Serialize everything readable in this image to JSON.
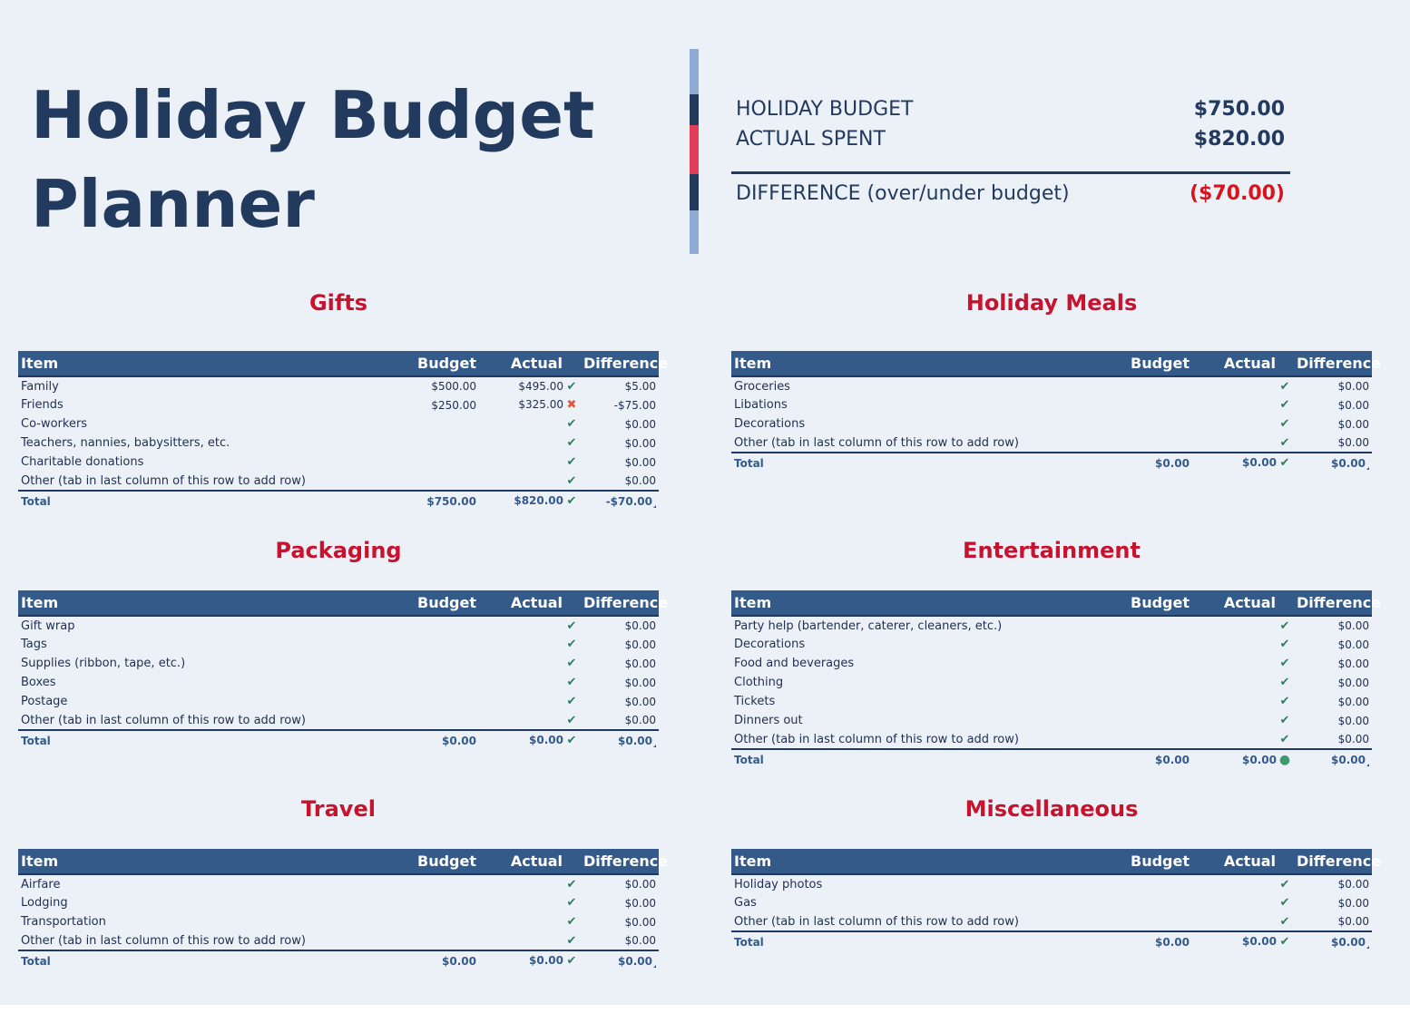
{
  "title_line1": "Holiday Budget",
  "title_line2": "Planner",
  "summary": {
    "budget_label": "HOLIDAY BUDGET",
    "budget_value": "$750.00",
    "spent_label": "ACTUAL SPENT",
    "spent_value": "$820.00",
    "difference_label": "DIFFERENCE (over/under budget)",
    "difference_value": "($70.00)"
  },
  "colors": {
    "title": "#223a5e",
    "section_title": "#c8132f",
    "header_fill": "#345a8a",
    "background": "#ecf1f8",
    "accent_red": "#e03e58",
    "accent_light": "#8eabd6",
    "negative": "#d9141e"
  },
  "headers": {
    "item": "Item",
    "budget": "Budget",
    "actual": "Actual",
    "difference": "Difference"
  },
  "sections": [
    {
      "title": "Gifts",
      "rows": [
        {
          "item": "Family",
          "budget": "$500.00",
          "actual": "$495.00",
          "mark": "check-icon",
          "difference": "$5.00"
        },
        {
          "item": "Friends",
          "budget": "$250.00",
          "actual": "$325.00",
          "mark": "cross-icon",
          "difference": "-$75.00"
        },
        {
          "item": "Co-workers",
          "budget": "",
          "actual": "",
          "mark": "check-icon",
          "difference": "$0.00"
        },
        {
          "item": "Teachers, nannies, babysitters, etc.",
          "budget": "",
          "actual": "",
          "mark": "check-icon",
          "difference": "$0.00"
        },
        {
          "item": "Charitable donations",
          "budget": "",
          "actual": "",
          "mark": "check-icon",
          "difference": "$0.00"
        },
        {
          "item": "Other (tab in last column of this row to add row)",
          "budget": "",
          "actual": "",
          "mark": "check-icon",
          "difference": "$0.00"
        }
      ],
      "total": {
        "label": "Total",
        "budget": "$750.00",
        "actual": "$820.00",
        "mark": "check-icon",
        "difference": "-$70.00"
      }
    },
    {
      "title": "Holiday Meals",
      "rows": [
        {
          "item": "Groceries",
          "budget": "",
          "actual": "",
          "mark": "check-icon",
          "difference": "$0.00"
        },
        {
          "item": "Libations",
          "budget": "",
          "actual": "",
          "mark": "check-icon",
          "difference": "$0.00"
        },
        {
          "item": "Decorations",
          "budget": "",
          "actual": "",
          "mark": "check-icon",
          "difference": "$0.00"
        },
        {
          "item": "Other (tab in last column of this row to add row)",
          "budget": "",
          "actual": "",
          "mark": "check-icon",
          "difference": "$0.00"
        }
      ],
      "total": {
        "label": "Total",
        "budget": "$0.00",
        "actual": "$0.00",
        "mark": "check-icon",
        "difference": "$0.00"
      }
    },
    {
      "title": "Packaging",
      "rows": [
        {
          "item": "Gift wrap",
          "budget": "",
          "actual": "",
          "mark": "check-icon",
          "difference": "$0.00"
        },
        {
          "item": "Tags",
          "budget": "",
          "actual": "",
          "mark": "check-icon",
          "difference": "$0.00"
        },
        {
          "item": "Supplies (ribbon, tape, etc.)",
          "budget": "",
          "actual": "",
          "mark": "check-icon",
          "difference": "$0.00"
        },
        {
          "item": "Boxes",
          "budget": "",
          "actual": "",
          "mark": "check-icon",
          "difference": "$0.00"
        },
        {
          "item": "Postage",
          "budget": "",
          "actual": "",
          "mark": "check-icon",
          "difference": "$0.00"
        },
        {
          "item": "Other (tab in last column of this row to add row)",
          "budget": "",
          "actual": "",
          "mark": "check-icon",
          "difference": "$0.00"
        }
      ],
      "total": {
        "label": "Total",
        "budget": "$0.00",
        "actual": "$0.00",
        "mark": "check-icon",
        "difference": "$0.00"
      }
    },
    {
      "title": "Entertainment",
      "rows": [
        {
          "item": "Party help (bartender, caterer, cleaners, etc.)",
          "budget": "",
          "actual": "",
          "mark": "check-icon",
          "difference": "$0.00"
        },
        {
          "item": "Decorations",
          "budget": "",
          "actual": "",
          "mark": "check-icon",
          "difference": "$0.00"
        },
        {
          "item": "Food and beverages",
          "budget": "",
          "actual": "",
          "mark": "check-icon",
          "difference": "$0.00"
        },
        {
          "item": "Clothing",
          "budget": "",
          "actual": "",
          "mark": "check-icon",
          "difference": "$0.00"
        },
        {
          "item": "Tickets",
          "budget": "",
          "actual": "",
          "mark": "check-icon",
          "difference": "$0.00"
        },
        {
          "item": "Dinners out",
          "budget": "",
          "actual": "",
          "mark": "check-icon",
          "difference": "$0.00"
        },
        {
          "item": "Other (tab in last column of this row to add row)",
          "budget": "",
          "actual": "",
          "mark": "check-icon",
          "difference": "$0.00"
        }
      ],
      "total": {
        "label": "Total",
        "budget": "$0.00",
        "actual": "$0.00",
        "mark": "dot-icon",
        "difference": "$0.00"
      }
    },
    {
      "title": "Travel",
      "rows": [
        {
          "item": "Airfare",
          "budget": "",
          "actual": "",
          "mark": "check-icon",
          "difference": "$0.00"
        },
        {
          "item": "Lodging",
          "budget": "",
          "actual": "",
          "mark": "check-icon",
          "difference": "$0.00"
        },
        {
          "item": "Transportation",
          "budget": "",
          "actual": "",
          "mark": "check-icon",
          "difference": "$0.00"
        },
        {
          "item": "Other (tab in last column of this row to add row)",
          "budget": "",
          "actual": "",
          "mark": "check-icon",
          "difference": "$0.00"
        }
      ],
      "total": {
        "label": "Total",
        "budget": "$0.00",
        "actual": "$0.00",
        "mark": "check-icon",
        "difference": "$0.00"
      }
    },
    {
      "title": "Miscellaneous",
      "rows": [
        {
          "item": "Holiday photos",
          "budget": "",
          "actual": "",
          "mark": "check-icon",
          "difference": "$0.00"
        },
        {
          "item": "Gas",
          "budget": "",
          "actual": "",
          "mark": "check-icon",
          "difference": "$0.00"
        },
        {
          "item": "Other (tab in last column of this row to add row)",
          "budget": "",
          "actual": "",
          "mark": "check-icon",
          "difference": "$0.00"
        }
      ],
      "total": {
        "label": "Total",
        "budget": "$0.00",
        "actual": "$0.00",
        "mark": "check-icon",
        "difference": "$0.00"
      }
    }
  ]
}
